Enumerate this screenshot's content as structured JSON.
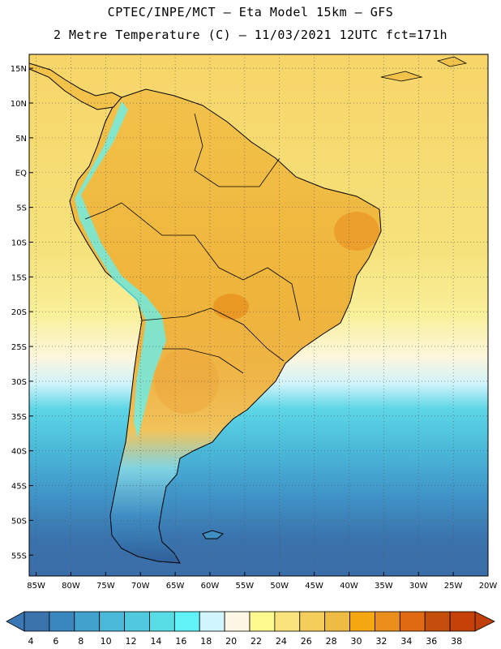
{
  "title": {
    "line1": "CPTEC/INPE/MCT –  Eta Model 15km – GFS",
    "line2": "2 Metre Temperature (C) – 11/03/2021 12UTC fct=171h"
  },
  "map": {
    "lat_labels": [
      "15N",
      "10N",
      "5N",
      "EQ",
      "5S",
      "10S",
      "15S",
      "20S",
      "25S",
      "30S",
      "35S",
      "40S",
      "45S",
      "50S",
      "55S"
    ],
    "lon_labels": [
      "85W",
      "80W",
      "75W",
      "70W",
      "65W",
      "60W",
      "55W",
      "50W",
      "45W",
      "40W",
      "35W",
      "30W",
      "25W",
      "20W"
    ],
    "lat_values": [
      15,
      10,
      5,
      0,
      -5,
      -10,
      -15,
      -20,
      -25,
      -30,
      -35,
      -40,
      -45,
      -50,
      -55
    ],
    "lon_values": [
      -85,
      -80,
      -75,
      -70,
      -65,
      -60,
      -55,
      -50,
      -45,
      -40,
      -35,
      -30,
      -25,
      -20
    ],
    "lat_range": [
      -58,
      17
    ],
    "lon_range": [
      -86,
      -20
    ]
  },
  "colorbar": {
    "labels": [
      "4",
      "6",
      "8",
      "10",
      "12",
      "14",
      "16",
      "18",
      "20",
      "22",
      "24",
      "26",
      "28",
      "30",
      "32",
      "34",
      "36",
      "38"
    ],
    "colors": [
      "#3a72ac",
      "#3a86bf",
      "#41a0cc",
      "#4ab8d8",
      "#50c8de",
      "#58dde6",
      "#5ff3f8",
      "#d2f6fd",
      "#fdf7e3",
      "#fdfb8f",
      "#f9e37a",
      "#f4cd5a",
      "#eebc43",
      "#f5a812",
      "#ea8e1c",
      "#e06a11",
      "#c44e0c",
      "#c54108"
    ],
    "low_color": "#3b77b5",
    "high_color": "#c0400c"
  }
}
